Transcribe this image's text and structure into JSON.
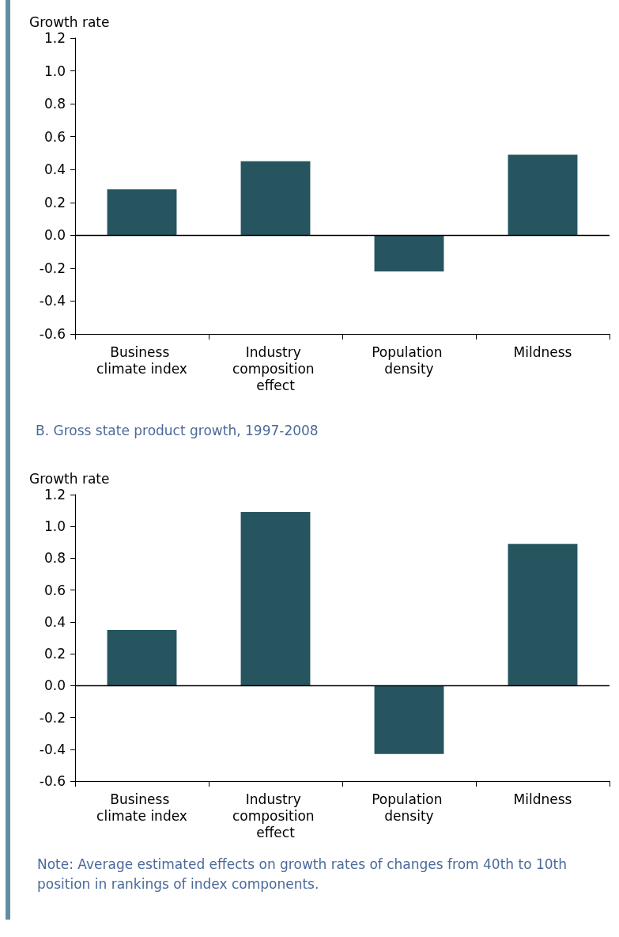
{
  "chart_data": [
    {
      "type": "bar",
      "ylabel": "Growth rate",
      "categories": [
        "Business climate index",
        "Industry composition effect",
        "Population density",
        "Mildness"
      ],
      "values": [
        0.28,
        0.45,
        -0.22,
        0.49
      ],
      "color": "#26555f",
      "ylim": [
        -0.6,
        1.2
      ],
      "yticks": [
        {
          "value": -0.6,
          "label": "-0.6"
        },
        {
          "value": -0.4,
          "label": "-0.4"
        },
        {
          "value": -0.2,
          "label": "-0.2"
        },
        {
          "value": 0,
          "label": "0.0"
        },
        {
          "value": 0.2,
          "label": "0.2"
        },
        {
          "value": 0.4,
          "label": "0.4"
        },
        {
          "value": 0.6,
          "label": "0.6"
        },
        {
          "value": 0.8,
          "label": "0.8"
        },
        {
          "value": 1.0,
          "label": "1.0"
        },
        {
          "value": 1.2,
          "label": "1.2"
        }
      ],
      "ref_lines": [
        {
          "axis": "y",
          "value": 0,
          "color": "#000000"
        }
      ],
      "grid": false
    },
    {
      "type": "bar",
      "title": "B. Gross state product growth, 1997-2008",
      "ylabel": "Growth rate",
      "categories": [
        "Business climate index",
        "Industry composition effect",
        "Population density",
        "Mildness"
      ],
      "values": [
        0.35,
        1.09,
        -0.43,
        0.89
      ],
      "color": "#26555f",
      "ylim": [
        -0.6,
        1.2
      ],
      "yticks": [
        {
          "value": -0.6,
          "label": "-0.6"
        },
        {
          "value": -0.4,
          "label": "-0.4"
        },
        {
          "value": -0.2,
          "label": "-0.2"
        },
        {
          "value": 0,
          "label": "0.0"
        },
        {
          "value": 0.2,
          "label": "0.2"
        },
        {
          "value": 0.4,
          "label": "0.4"
        },
        {
          "value": 0.6,
          "label": "0.6"
        },
        {
          "value": 0.8,
          "label": "0.8"
        },
        {
          "value": 1.0,
          "label": "1.0"
        },
        {
          "value": 1.2,
          "label": "1.2"
        }
      ],
      "ref_lines": [
        {
          "axis": "y",
          "value": 0,
          "color": "#000000"
        }
      ],
      "grid": false,
      "annotations": [
        "Note: Average estimated effects on growth rates of changes from 40th to 10th position in rankings of index components."
      ]
    }
  ]
}
